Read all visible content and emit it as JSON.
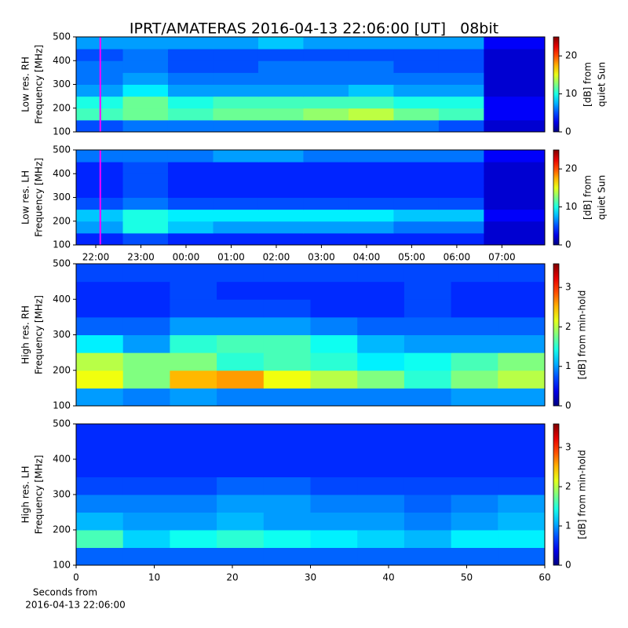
{
  "title": "IPRT/AMATERAS 2016-04-13 22:06:00 [UT]   08bit",
  "xlabel": [
    "Seconds from",
    "2016-04-13 22:06:00"
  ],
  "chart_data": [
    {
      "type": "heatmap",
      "colormap": "jet",
      "ylabel": [
        "Low res. RH",
        "Frequency [MHz]"
      ],
      "colorbar_label": [
        "[dB] from",
        "quiet Sun"
      ],
      "clim": [
        0,
        25
      ],
      "cbticks": [
        0,
        10,
        20
      ],
      "xlim": [
        21.565,
        31.95
      ],
      "ylim": [
        100,
        500
      ],
      "yticks": [
        100,
        200,
        300,
        400,
        500
      ],
      "marker_x": 22.1,
      "marker_color": "#ff00ff",
      "xbins": [
        21.565,
        22.6,
        23.6,
        24.6,
        25.6,
        26.6,
        27.6,
        28.6,
        29.6,
        30.6,
        31.95
      ],
      "ybins": [
        100,
        150,
        200,
        250,
        300,
        350,
        400,
        450,
        500
      ],
      "values": [
        [
          5,
          6,
          6,
          6,
          6,
          6,
          6,
          6,
          5,
          2
        ],
        [
          11,
          12,
          11,
          12,
          12,
          13,
          14,
          12,
          11,
          3
        ],
        [
          10,
          12,
          10,
          11,
          11,
          11,
          11,
          10,
          10,
          3
        ],
        [
          7,
          9,
          7,
          7,
          7,
          7,
          8,
          7,
          7,
          2
        ],
        [
          6,
          7,
          6,
          6,
          6,
          6,
          6,
          6,
          6,
          2
        ],
        [
          6,
          6,
          5,
          5,
          6,
          6,
          6,
          5,
          5,
          2
        ],
        [
          5,
          6,
          5,
          5,
          5,
          5,
          5,
          5,
          5,
          2
        ],
        [
          7,
          7,
          7,
          7,
          8,
          7,
          7,
          7,
          7,
          3
        ]
      ]
    },
    {
      "type": "heatmap",
      "colormap": "jet",
      "ylabel": [
        "Low res. LH",
        "Frequency [MHz]"
      ],
      "colorbar_label": [
        "[dB] from",
        "quiet Sun"
      ],
      "clim": [
        0,
        25
      ],
      "cbticks": [
        0,
        10,
        20
      ],
      "xlim": [
        21.565,
        31.95
      ],
      "ylim": [
        100,
        500
      ],
      "yticks": [
        100,
        200,
        300,
        400,
        500
      ],
      "xticks": [
        {
          "value": 22,
          "label": "22:00"
        },
        {
          "value": 23,
          "label": "23:00"
        },
        {
          "value": 24,
          "label": "00:00"
        },
        {
          "value": 25,
          "label": "01:00"
        },
        {
          "value": 26,
          "label": "02:00"
        },
        {
          "value": 27,
          "label": "03:00"
        },
        {
          "value": 28,
          "label": "04:00"
        },
        {
          "value": 29,
          "label": "05:00"
        },
        {
          "value": 30,
          "label": "06:00"
        },
        {
          "value": 31,
          "label": "07:00"
        }
      ],
      "marker_x": 22.1,
      "marker_color": "#ff00ff",
      "xbins": [
        21.565,
        22.6,
        23.6,
        24.6,
        25.6,
        26.6,
        27.6,
        28.6,
        29.6,
        30.6,
        31.95
      ],
      "ybins": [
        100,
        150,
        200,
        250,
        300,
        350,
        400,
        450,
        500
      ],
      "values": [
        [
          4,
          5,
          4,
          4,
          4,
          4,
          4,
          4,
          4,
          2
        ],
        [
          7,
          10,
          8,
          7,
          7,
          7,
          7,
          6,
          6,
          2
        ],
        [
          8,
          10,
          9,
          9,
          9,
          9,
          9,
          8,
          8,
          3
        ],
        [
          5,
          6,
          5,
          5,
          5,
          5,
          5,
          5,
          5,
          2
        ],
        [
          4,
          5,
          4,
          4,
          4,
          4,
          4,
          4,
          4,
          2
        ],
        [
          4,
          5,
          4,
          4,
          4,
          4,
          4,
          4,
          4,
          2
        ],
        [
          4,
          5,
          4,
          4,
          4,
          4,
          4,
          4,
          4,
          2
        ],
        [
          6,
          6,
          6,
          7,
          7,
          6,
          6,
          6,
          6,
          3
        ]
      ]
    },
    {
      "type": "heatmap",
      "colormap": "jet",
      "ylabel": [
        "High res. RH",
        "Frequency [MHz]"
      ],
      "colorbar_label": [
        "[dB] from min-hold"
      ],
      "clim": [
        0,
        3.6
      ],
      "cbticks": [
        0,
        1,
        2,
        3
      ],
      "xlim": [
        0,
        60
      ],
      "ylim": [
        100,
        500
      ],
      "yticks": [
        100,
        200,
        300,
        400,
        500
      ],
      "xbins": [
        0,
        6,
        12,
        18,
        24,
        30,
        36,
        42,
        48,
        54,
        60
      ],
      "ybins": [
        100,
        150,
        200,
        250,
        300,
        350,
        400,
        450,
        500
      ],
      "values": [
        [
          1.0,
          0.9,
          1.0,
          0.9,
          0.9,
          0.9,
          0.9,
          0.9,
          1.0,
          1.0
        ],
        [
          2.2,
          1.8,
          2.5,
          2.6,
          2.2,
          2.0,
          1.8,
          1.5,
          1.8,
          2.0
        ],
        [
          2.0,
          1.8,
          1.8,
          1.5,
          1.6,
          1.5,
          1.3,
          1.4,
          1.6,
          1.8
        ],
        [
          1.3,
          1.0,
          1.5,
          1.6,
          1.6,
          1.4,
          1.1,
          1.0,
          1.0,
          1.0
        ],
        [
          0.8,
          0.8,
          1.0,
          1.0,
          1.0,
          0.9,
          0.8,
          0.8,
          0.8,
          0.8
        ],
        [
          0.6,
          0.6,
          0.7,
          0.7,
          0.7,
          0.6,
          0.6,
          0.7,
          0.6,
          0.6
        ],
        [
          0.6,
          0.6,
          0.7,
          0.6,
          0.6,
          0.6,
          0.6,
          0.7,
          0.6,
          0.6
        ],
        [
          0.7,
          0.7,
          0.7,
          0.7,
          0.7,
          0.7,
          0.7,
          0.7,
          0.7,
          0.7
        ]
      ]
    },
    {
      "type": "heatmap",
      "colormap": "jet",
      "ylabel": [
        "High res. LH",
        "Frequency [MHz]"
      ],
      "colorbar_label": [
        "[dB] from min-hold"
      ],
      "clim": [
        0,
        3.6
      ],
      "cbticks": [
        0,
        1,
        2,
        3
      ],
      "xlim": [
        0,
        60
      ],
      "ylim": [
        100,
        500
      ],
      "yticks": [
        100,
        200,
        300,
        400,
        500
      ],
      "xticks": [
        0,
        10,
        20,
        30,
        40,
        50,
        60
      ],
      "xbins": [
        0,
        6,
        12,
        18,
        24,
        30,
        36,
        42,
        48,
        54,
        60
      ],
      "ybins": [
        100,
        150,
        200,
        250,
        300,
        350,
        400,
        450,
        500
      ],
      "values": [
        [
          0.8,
          0.8,
          0.8,
          0.8,
          0.8,
          0.8,
          0.8,
          0.8,
          0.8,
          0.8
        ],
        [
          1.6,
          1.2,
          1.4,
          1.5,
          1.4,
          1.3,
          1.2,
          1.1,
          1.3,
          1.3
        ],
        [
          1.1,
          1.0,
          1.0,
          1.1,
          1.0,
          1.0,
          1.0,
          0.9,
          1.0,
          1.1
        ],
        [
          0.9,
          0.9,
          0.9,
          1.0,
          1.0,
          0.9,
          0.9,
          0.8,
          0.9,
          1.0
        ],
        [
          0.7,
          0.7,
          0.7,
          0.8,
          0.8,
          0.7,
          0.7,
          0.7,
          0.7,
          0.7
        ],
        [
          0.6,
          0.6,
          0.6,
          0.6,
          0.6,
          0.6,
          0.6,
          0.6,
          0.6,
          0.6
        ],
        [
          0.6,
          0.6,
          0.6,
          0.6,
          0.6,
          0.6,
          0.6,
          0.6,
          0.6,
          0.6
        ],
        [
          0.6,
          0.6,
          0.6,
          0.6,
          0.6,
          0.6,
          0.6,
          0.6,
          0.6,
          0.6
        ]
      ]
    }
  ]
}
